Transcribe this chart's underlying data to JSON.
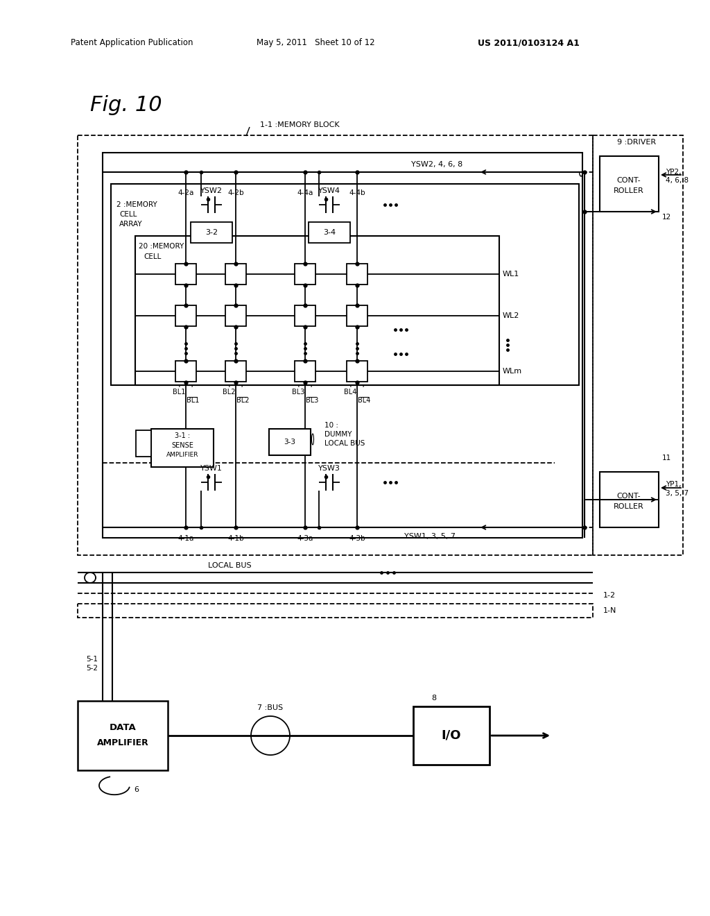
{
  "bg": "#ffffff",
  "header_left": "Patent Application Publication",
  "header_mid": "May 5, 2011   Sheet 10 of 12",
  "header_right": "US 2011/0103124 A1",
  "fig_title": "Fig. 10",
  "mb_label": "1-1 :MEMORY BLOCK",
  "driver_label": "9 :DRIVER",
  "ctrl_label": "CONT-\nROLLER",
  "yp2_label": "YP2,\n4, 6, 8",
  "yp1_label": "YP1,\n3, 5, 7",
  "label12": "12",
  "label11": "11",
  "ysw2468": "YSW2, 4, 6, 8",
  "ysw1357": "YSW1, 3, 5, 7",
  "mem_array_label": "2 :MEMORY\nCELL\nARRAY",
  "mem_cell_label": "20 :MEMORY\nCELL",
  "col_top": [
    "4-2a",
    "4-2b",
    "4-4a",
    "4-4b"
  ],
  "col_bot": [
    "4-1a",
    "4-1b",
    "4-3a",
    "4-3b"
  ],
  "wl_labels": [
    "WL1",
    "WL2",
    "WLm"
  ],
  "bl_labels": [
    "BL1",
    "BL2",
    "BL3",
    "BL4"
  ],
  "ysw_top": [
    "YSW2",
    "YSW4"
  ],
  "ysw_bot": [
    "YSW1",
    "YSW3"
  ],
  "lb_labels": [
    "3-2",
    "3-4"
  ],
  "sa_label": "3-1 :\nSENSE\nAMPLIFIER",
  "dummy_label": "3-3",
  "dummy2_label": "10 :\nDUMMY\nLOCAL BUS",
  "local_bus_label": "LOCAL BUS",
  "label_12_ref": "1-2",
  "label_1n": "1-N",
  "data_amp_label": "DATA\nAMPLIFIER",
  "bus_label": "7 :BUS",
  "io_label": "I/O",
  "label8": "8",
  "label6": "6",
  "label51": "5-1",
  "label52": "5-2"
}
